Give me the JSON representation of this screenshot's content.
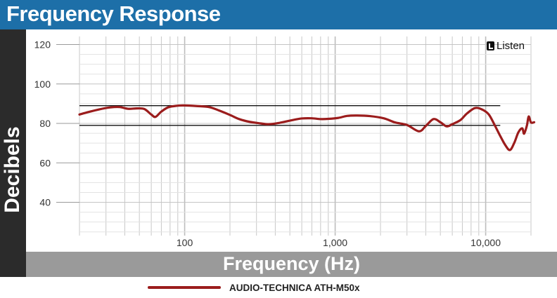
{
  "header": {
    "title": "Frequency Response"
  },
  "brand": {
    "name": "Listen"
  },
  "colors": {
    "header_bg": "#1d6fa8",
    "series": "#9b1c1c",
    "band": "#111111",
    "grid": "#c8c8c8"
  },
  "chart_data": {
    "type": "line",
    "title": "Frequency Response",
    "xlabel": "Frequency (Hz)",
    "ylabel": "Decibels",
    "x_scale": "log",
    "xlim": [
      20,
      20000
    ],
    "ylim": [
      20,
      125
    ],
    "grid": true,
    "legend_position": "bottom",
    "y_ticks": [
      40,
      60,
      80,
      100,
      120
    ],
    "x_ticks": [
      100,
      1000,
      10000
    ],
    "x_tick_labels": [
      "100",
      "1,000",
      "10,000"
    ],
    "reference_lines": [
      {
        "y": 89,
        "x_range": [
          20,
          12500
        ]
      },
      {
        "y": 79,
        "x_range": [
          20,
          12500
        ]
      }
    ],
    "series": [
      {
        "name": "AUDIO-TECHNICA ATH-M50x",
        "color": "#9b1c1c",
        "points": [
          [
            20,
            84.5
          ],
          [
            23,
            85.8
          ],
          [
            27,
            87.1
          ],
          [
            32,
            88.1
          ],
          [
            37,
            88.3
          ],
          [
            42,
            87.4
          ],
          [
            48,
            87.6
          ],
          [
            54,
            87.3
          ],
          [
            60,
            84.5
          ],
          [
            64,
            83.3
          ],
          [
            70,
            86
          ],
          [
            78,
            88.2
          ],
          [
            90,
            89
          ],
          [
            100,
            89.1
          ],
          [
            120,
            88.8
          ],
          [
            145,
            88.3
          ],
          [
            170,
            86.5
          ],
          [
            200,
            84.3
          ],
          [
            230,
            82.2
          ],
          [
            270,
            80.8
          ],
          [
            320,
            80
          ],
          [
            360,
            79.6
          ],
          [
            420,
            80.2
          ],
          [
            500,
            81.4
          ],
          [
            600,
            82.5
          ],
          [
            700,
            82.6
          ],
          [
            800,
            82.2
          ],
          [
            900,
            82.3
          ],
          [
            1050,
            82.8
          ],
          [
            1200,
            83.8
          ],
          [
            1400,
            84
          ],
          [
            1700,
            83.7
          ],
          [
            2100,
            82.6
          ],
          [
            2500,
            80.5
          ],
          [
            3000,
            79.2
          ],
          [
            3600,
            76
          ],
          [
            4000,
            78.7
          ],
          [
            4500,
            82.2
          ],
          [
            5000,
            80.6
          ],
          [
            5500,
            78.5
          ],
          [
            6000,
            79.6
          ],
          [
            6800,
            81.7
          ],
          [
            7500,
            85
          ],
          [
            8500,
            87.8
          ],
          [
            9500,
            87
          ],
          [
            10500,
            84.5
          ],
          [
            11500,
            79
          ],
          [
            12500,
            73.6
          ],
          [
            13500,
            69
          ],
          [
            14500,
            66.5
          ],
          [
            15500,
            70.2
          ],
          [
            16500,
            75.5
          ],
          [
            17500,
            77.5
          ],
          [
            18000,
            74.8
          ],
          [
            18800,
            79
          ],
          [
            19300,
            83.5
          ],
          [
            20000,
            80.5
          ],
          [
            21000,
            80.6
          ]
        ]
      }
    ]
  }
}
